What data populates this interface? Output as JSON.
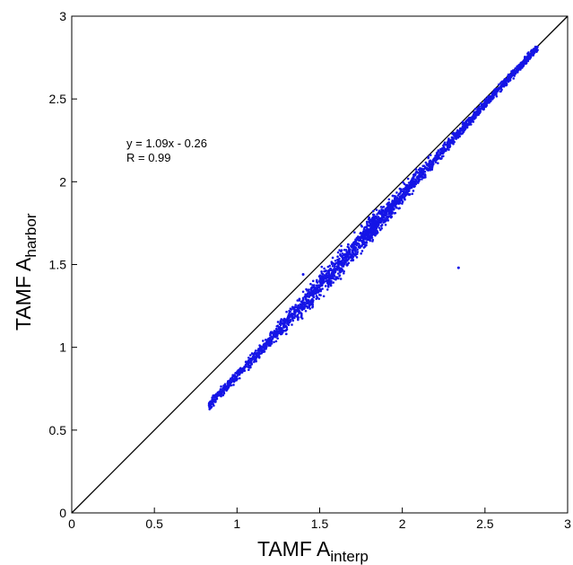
{
  "chart_data": {
    "type": "scatter",
    "xlabel": {
      "base": "TAMF A",
      "sub": "interp"
    },
    "ylabel": {
      "base": "TAMF A",
      "sub": "harbor"
    },
    "xlim": [
      0,
      3
    ],
    "ylim": [
      0,
      3
    ],
    "xticks": [
      "0",
      "0.5",
      "1",
      "1.5",
      "2",
      "2.5",
      "3"
    ],
    "yticks": [
      "0",
      "0.5",
      "1",
      "1.5",
      "2",
      "2.5",
      "3"
    ],
    "grid": false,
    "reference_line": {
      "slope": 1,
      "intercept": 0,
      "color": "#000000"
    },
    "annotations": [
      "y = 1.09x - 0.26",
      "R = 0.99"
    ],
    "point_color": "#1515e6",
    "fit": {
      "slope": 1.09,
      "intercept": -0.26,
      "r": 0.99
    },
    "point_cloud": {
      "x_range": [
        0.83,
        2.82
      ],
      "band_centerline": [
        [
          0.83,
          0.65
        ],
        [
          1.0,
          0.83
        ],
        [
          1.2,
          1.04
        ],
        [
          1.4,
          1.26
        ],
        [
          1.6,
          1.48
        ],
        [
          1.8,
          1.7
        ],
        [
          2.0,
          1.92
        ],
        [
          2.2,
          2.14
        ],
        [
          2.4,
          2.36
        ],
        [
          2.6,
          2.58
        ],
        [
          2.82,
          2.81
        ]
      ],
      "outliers": [
        [
          1.4,
          1.44
        ],
        [
          2.34,
          1.48
        ]
      ]
    }
  }
}
